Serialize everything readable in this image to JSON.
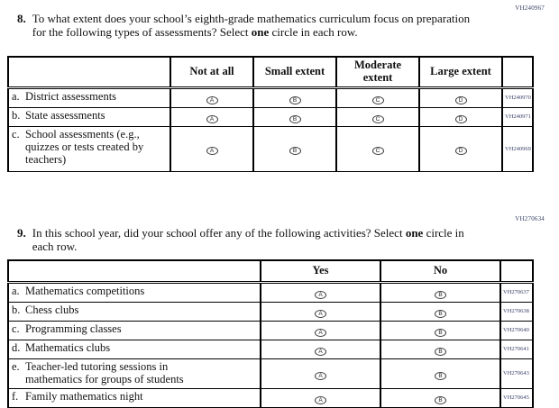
{
  "questions": [
    {
      "number": "8.",
      "text_before": "To what extent does your school’s eighth-grade mathematics curriculum focus on preparation for the following types of assessments? Select ",
      "text_bold": "one",
      "text_after": " circle in each row.",
      "code": "VH240967",
      "columns": [
        "Not at all",
        "Small extent",
        "Moderate extent",
        "Large extent"
      ],
      "option_letters": [
        "A",
        "B",
        "C",
        "D"
      ],
      "rows": [
        {
          "letter": "a.",
          "label": "District assessments",
          "code": "VH240970"
        },
        {
          "letter": "b.",
          "label": "State assessments",
          "code": "VH240971"
        },
        {
          "letter": "c.",
          "label": "School assessments (e.g., quizzes or tests created by teachers)",
          "code": "VH240969"
        }
      ]
    },
    {
      "number": "9.",
      "text_before": "In this school year, did your school offer any of the following activities? Select ",
      "text_bold": "one",
      "text_after": " circle in each row.",
      "code": "VH270634",
      "columns": [
        "Yes",
        "No"
      ],
      "option_letters": [
        "A",
        "B"
      ],
      "rows": [
        {
          "letter": "a.",
          "label": "Mathematics competitions",
          "code": "VH270637"
        },
        {
          "letter": "b.",
          "label": "Chess clubs",
          "code": "VH270638"
        },
        {
          "letter": "c.",
          "label": "Programming classes",
          "code": "VH270640"
        },
        {
          "letter": "d.",
          "label": "Mathematics clubs",
          "code": "VH270641"
        },
        {
          "letter": "e.",
          "label": "Teacher-led tutoring sessions in mathematics for groups of students",
          "code": "VH270643"
        },
        {
          "letter": "f.",
          "label": "Family mathematics night",
          "code": "VH270645"
        }
      ]
    }
  ]
}
